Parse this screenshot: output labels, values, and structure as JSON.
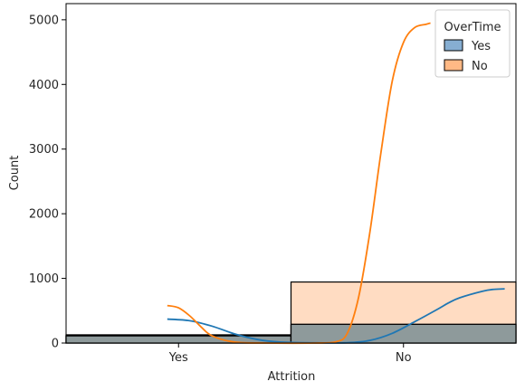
{
  "chart_data": {
    "type": "bar",
    "xlabel": "Attrition",
    "ylabel": "Count",
    "categories": [
      "Yes",
      "No"
    ],
    "ylim": [
      0,
      5250
    ],
    "yticks": [
      0,
      1000,
      2000,
      3000,
      4000,
      5000
    ],
    "stacking": "overlay",
    "grid": false,
    "legend": {
      "title": "OverTime",
      "placement": "top-right",
      "entries": [
        "Yes",
        "No"
      ]
    },
    "series": [
      {
        "name": "Yes",
        "values": [
          127,
          289
        ],
        "color": "#1f77b4",
        "fill": "#86aed2"
      },
      {
        "name": "No",
        "values": [
          110,
          944
        ],
        "color": "#ff7f0e",
        "fill": "#ffb985"
      }
    ],
    "kde_curves": [
      {
        "name": "Yes",
        "color": "#1f77b4",
        "points": [
          [
            -0.05,
            370
          ],
          [
            0.05,
            345
          ],
          [
            0.15,
            260
          ],
          [
            0.25,
            140
          ],
          [
            0.35,
            55
          ],
          [
            0.45,
            15
          ],
          [
            0.6,
            3
          ],
          [
            0.75,
            5
          ],
          [
            0.85,
            40
          ],
          [
            0.95,
            150
          ],
          [
            1.05,
            330
          ],
          [
            1.15,
            520
          ],
          [
            1.2,
            620
          ],
          [
            1.25,
            700
          ],
          [
            1.35,
            800
          ],
          [
            1.4,
            830
          ],
          [
            1.45,
            838
          ]
        ]
      },
      {
        "name": "No",
        "color": "#ff7f0e",
        "points": [
          [
            -0.05,
            580
          ],
          [
            0.0,
            545
          ],
          [
            0.05,
            420
          ],
          [
            0.1,
            250
          ],
          [
            0.15,
            110
          ],
          [
            0.25,
            15
          ],
          [
            0.4,
            0
          ],
          [
            0.6,
            0
          ],
          [
            0.7,
            20
          ],
          [
            0.75,
            150
          ],
          [
            0.8,
            700
          ],
          [
            0.85,
            1700
          ],
          [
            0.9,
            2950
          ],
          [
            0.95,
            4050
          ],
          [
            1.0,
            4650
          ],
          [
            1.05,
            4880
          ],
          [
            1.1,
            4930
          ],
          [
            1.12,
            4950
          ]
        ]
      }
    ]
  }
}
